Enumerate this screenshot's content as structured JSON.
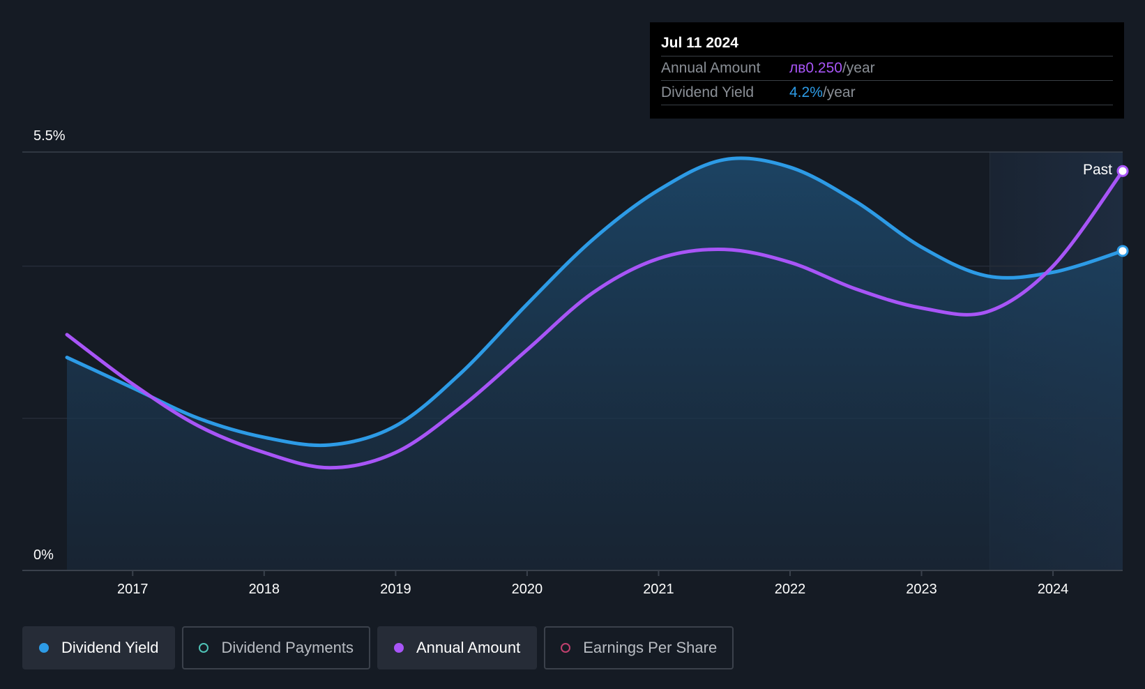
{
  "tooltip": {
    "date": "Jul 11 2024",
    "rows": [
      {
        "label": "Annual Amount",
        "value": "лв0.250",
        "unit": "/year",
        "color": "#a855f7"
      },
      {
        "label": "Dividend Yield",
        "value": "4.2%",
        "unit": "/year",
        "color": "#2d9be6"
      }
    ]
  },
  "past_label": "Past",
  "legend": [
    {
      "label": "Dividend Yield",
      "active": true,
      "marker": "filled",
      "color": "#2d9be6"
    },
    {
      "label": "Dividend Payments",
      "active": false,
      "marker": "ring",
      "color": "#4fc3b7"
    },
    {
      "label": "Annual Amount",
      "active": true,
      "marker": "filled",
      "color": "#a855f7"
    },
    {
      "label": "Earnings Per Share",
      "active": false,
      "marker": "ring",
      "color": "#c0406e"
    }
  ],
  "chart_data": {
    "type": "line",
    "y_axis_labels": [
      "5.5%",
      "0%"
    ],
    "ylim": [
      0,
      5.5
    ],
    "xlim": [
      2016.5,
      2024.53
    ],
    "x_ticks": [
      "2017",
      "2018",
      "2019",
      "2020",
      "2021",
      "2022",
      "2023",
      "2024"
    ],
    "past_region_start": 2023.52,
    "grid": true,
    "series": [
      {
        "name": "Dividend Yield",
        "color": "#2d9be6",
        "area": true,
        "points": [
          [
            2016.5,
            2.8
          ],
          [
            2017.0,
            2.4
          ],
          [
            2017.5,
            2.0
          ],
          [
            2018.0,
            1.75
          ],
          [
            2018.5,
            1.65
          ],
          [
            2019.0,
            1.9
          ],
          [
            2019.5,
            2.6
          ],
          [
            2020.0,
            3.5
          ],
          [
            2020.5,
            4.35
          ],
          [
            2021.0,
            5.0
          ],
          [
            2021.5,
            5.4
          ],
          [
            2022.0,
            5.3
          ],
          [
            2022.5,
            4.85
          ],
          [
            2023.0,
            4.25
          ],
          [
            2023.5,
            3.87
          ],
          [
            2024.0,
            3.92
          ],
          [
            2024.53,
            4.2
          ]
        ]
      },
      {
        "name": "Annual Amount",
        "color": "#a855f7",
        "area": false,
        "points": [
          [
            2016.5,
            3.1
          ],
          [
            2017.0,
            2.45
          ],
          [
            2017.5,
            1.9
          ],
          [
            2018.0,
            1.55
          ],
          [
            2018.5,
            1.35
          ],
          [
            2019.0,
            1.55
          ],
          [
            2019.5,
            2.15
          ],
          [
            2020.0,
            2.9
          ],
          [
            2020.5,
            3.65
          ],
          [
            2021.0,
            4.1
          ],
          [
            2021.5,
            4.22
          ],
          [
            2022.0,
            4.05
          ],
          [
            2022.5,
            3.7
          ],
          [
            2023.0,
            3.45
          ],
          [
            2023.5,
            3.4
          ],
          [
            2024.0,
            4.0
          ],
          [
            2024.53,
            5.25
          ]
        ]
      }
    ]
  }
}
